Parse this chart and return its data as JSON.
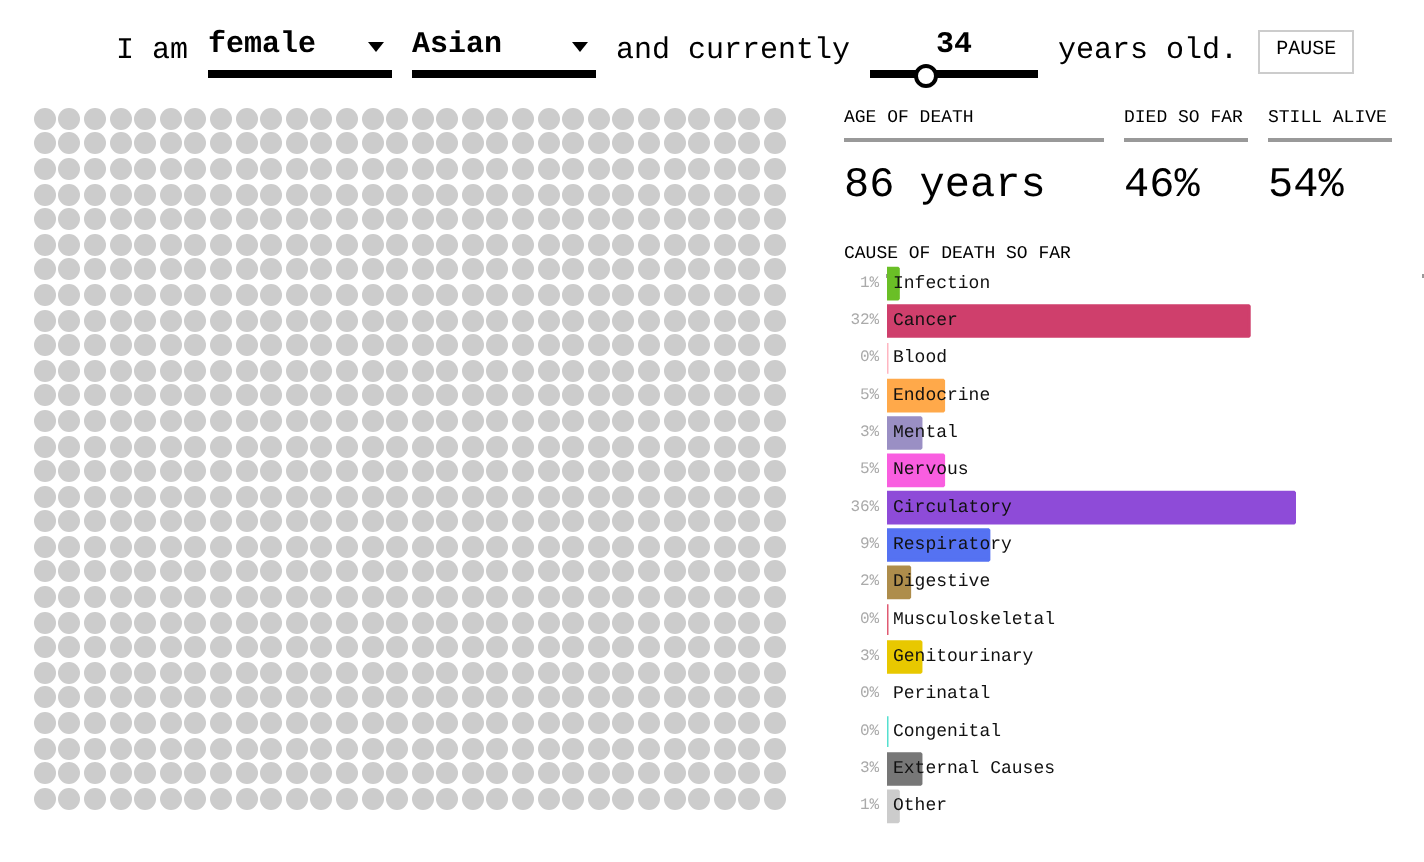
{
  "chart_data": {
    "type": "bar",
    "orientation": "horizontal",
    "title": "CAUSE OF DEATH SO FAR",
    "categories": [
      "Infection",
      "Cancer",
      "Blood",
      "Endocrine",
      "Mental",
      "Nervous",
      "Circulatory",
      "Respiratory",
      "Digestive",
      "Musculoskeletal",
      "Genitourinary",
      "Perinatal",
      "Congenital",
      "External Causes",
      "Other"
    ],
    "values": [
      1,
      32,
      0,
      5,
      3,
      5,
      36,
      9,
      2,
      0,
      3,
      0,
      0,
      3,
      1
    ],
    "colors": [
      "#6abf26",
      "#cf3f6c",
      "#ffb6c1",
      "#ffa94a",
      "#9a8fc4",
      "#f95ee0",
      "#8e4bd8",
      "#5572f2",
      "#ae8d4b",
      "#e05a72",
      "#e8c800",
      "#ffffff",
      "#55e0d0",
      "#777777",
      "#cccccc"
    ],
    "value_labels": [
      "1%",
      "32%",
      "0%",
      "5%",
      "3%",
      "5%",
      "36%",
      "9%",
      "2%",
      "0%",
      "3%",
      "0%",
      "0%",
      "3%",
      "1%"
    ],
    "xlim": [
      0,
      47
    ],
    "tick_labels": false,
    "annotations": [
      "I am",
      "female",
      "Asian",
      "and currently",
      "34",
      "years old.",
      "PAUSE",
      "AGE OF DEATH",
      "86 years",
      "DIED SO FAR",
      "46%",
      "STILL ALIVE",
      "54%"
    ]
  }
}
